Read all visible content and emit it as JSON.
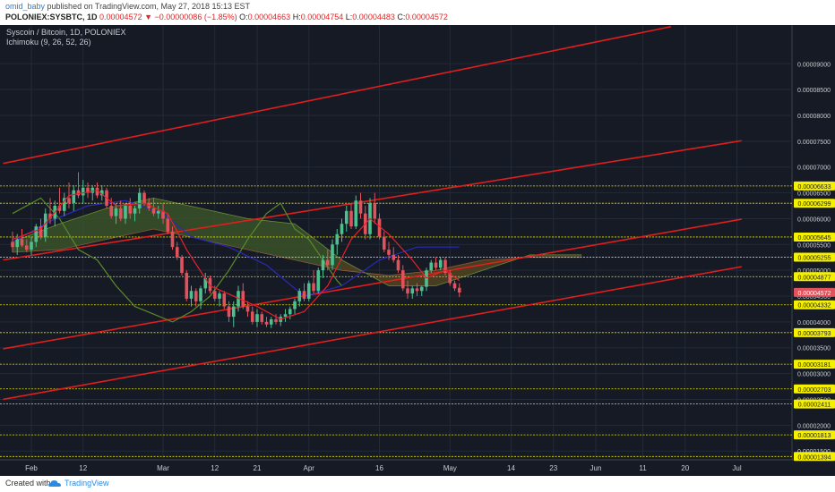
{
  "header": {
    "username": "omid_baby",
    "published_text": "published on TradingView.com, May 27, 2018 15:13 EST",
    "symbol": "POLONIEX:SYSBTC, 1D",
    "last": "0.00004572",
    "change": "▼ −0.00000086 (−1.85%)",
    "o_label": "O:",
    "o_value": "0.00004663",
    "h_label": "H:",
    "h_value": "0.00004754",
    "l_label": "L:",
    "l_value": "0.00004483",
    "c_label": "C:",
    "c_value": "0.00004572"
  },
  "overlay": {
    "title": "Syscoin / Bitcoin, 1D, POLONIEX",
    "indicator": "Ichimoku (9, 26, 52, 26)"
  },
  "footer": {
    "created_with": "Created with",
    "brand": "TradingView"
  },
  "colors": {
    "background": "#151a24",
    "grid": "#232a38",
    "up": "#4fbf8f",
    "down": "#e0535c",
    "trendline": "#e01e1e",
    "level": "#e8e400",
    "tenkan": "#e8202a",
    "kijun": "#2a2ab8",
    "chikou": "#5a8a2a",
    "cloud_bull": "#3e5a28",
    "cloud_bear": "#5a4a20",
    "axis_text": "#c7cbd1"
  },
  "chart_data": {
    "type": "candlestick",
    "symbol": "SYSBTC",
    "interval": "1D",
    "ylim": [
      1.33e-05,
      9.75e-05
    ],
    "y_ticks": [
      "0.00009000",
      "0.00008500",
      "0.00008000",
      "0.00007500",
      "0.00007000",
      "0.00006500",
      "0.00006000",
      "0.00005500",
      "0.00005000",
      "0.00004500",
      "0.00004000",
      "0.00003500",
      "0.00003000",
      "0.00002500",
      "0.00002000",
      "0.00001500"
    ],
    "x_ticks": [
      {
        "label": "Feb",
        "d": 4
      },
      {
        "label": "12",
        "d": 15
      },
      {
        "label": "Mar",
        "d": 32
      },
      {
        "label": "12",
        "d": 43
      },
      {
        "label": "21",
        "d": 52
      },
      {
        "label": "Apr",
        "d": 63
      },
      {
        "label": "16",
        "d": 78
      },
      {
        "label": "May",
        "d": 93
      },
      {
        "label": "14",
        "d": 106
      },
      {
        "label": "23",
        "d": 115
      },
      {
        "label": "Jun",
        "d": 124
      },
      {
        "label": "11",
        "d": 134
      },
      {
        "label": "20",
        "d": 143
      },
      {
        "label": "Jul",
        "d": 154
      }
    ],
    "levels": [
      {
        "label": "0.00006633",
        "value": 6.633e-05
      },
      {
        "label": "0.00006299",
        "value": 6.299e-05
      },
      {
        "label": "0.00005645",
        "value": 5.645e-05
      },
      {
        "label": "0.00005255",
        "value": 5.255e-05
      },
      {
        "label": "0.00004877",
        "value": 4.877e-05
      },
      {
        "label": "0.00004332",
        "value": 4.332e-05
      },
      {
        "label": "0.00003793",
        "value": 3.793e-05
      },
      {
        "label": "0.00003181",
        "value": 3.181e-05
      },
      {
        "label": "0.00002703",
        "value": 2.703e-05
      },
      {
        "label": "0.00002411",
        "value": 2.411e-05
      },
      {
        "label": "0.00001813",
        "value": 1.813e-05
      },
      {
        "label": "0.00001394",
        "value": 1.394e-05
      }
    ],
    "last_price": {
      "label": "0.00004572",
      "value": 4.572e-05
    },
    "trendlines": [
      [
        [
          -2,
          7.07e-05
        ],
        [
          140,
          9.72e-05
        ]
      ],
      [
        [
          -2,
          5.2e-05
        ],
        [
          155,
          7.51e-05
        ]
      ],
      [
        [
          -2,
          3.48e-05
        ],
        [
          155,
          5.99e-05
        ]
      ],
      [
        [
          -2,
          2.5e-05
        ],
        [
          155,
          5.07e-05
        ]
      ]
    ],
    "candles": [
      [
        5.55e-05,
        5.75e-05,
        5.35e-05,
        5.45e-05
      ],
      [
        5.45e-05,
        5.7e-05,
        5.3e-05,
        5.6e-05
      ],
      [
        5.6e-05,
        5.8e-05,
        5.45e-05,
        5.48e-05
      ],
      [
        5.48e-05,
        5.6e-05,
        5.35e-05,
        5.4e-05
      ],
      [
        5.4e-05,
        5.65e-05,
        5.3e-05,
        5.55e-05
      ],
      [
        5.55e-05,
        5.9e-05,
        5.45e-05,
        5.85e-05
      ],
      [
        5.85e-05,
        6e-05,
        5.6e-05,
        5.65e-05
      ],
      [
        5.65e-05,
        6.2e-05,
        5.55e-05,
        6.1e-05
      ],
      [
        6.1e-05,
        6.4e-05,
        5.9e-05,
        6e-05
      ],
      [
        6e-05,
        6.35e-05,
        5.85e-05,
        6.25e-05
      ],
      [
        6.25e-05,
        6.6e-05,
        6.1e-05,
        6.15e-05
      ],
      [
        6.15e-05,
        6.5e-05,
        6.05e-05,
        6.4e-05
      ],
      [
        6.4e-05,
        6.7e-05,
        6.2e-05,
        6.3e-05
      ],
      [
        6.3e-05,
        6.65e-05,
        6.15e-05,
        6.55e-05
      ],
      [
        6.55e-05,
        6.9e-05,
        6.4e-05,
        6.45e-05
      ],
      [
        6.45e-05,
        6.75e-05,
        6.3e-05,
        6.6e-05
      ],
      [
        6.6e-05,
        6.7e-05,
        6.4e-05,
        6.5e-05
      ],
      [
        6.5e-05,
        6.65e-05,
        6.35e-05,
        6.6e-05
      ],
      [
        6.6e-05,
        6.7e-05,
        6.4e-05,
        6.45e-05
      ],
      [
        6.45e-05,
        6.65e-05,
        6.35e-05,
        6.55e-05
      ],
      [
        6.55e-05,
        6.6e-05,
        6.2e-05,
        6.25e-05
      ],
      [
        6.25e-05,
        6.4e-05,
        6e-05,
        6.05e-05
      ],
      [
        6.05e-05,
        6.3e-05,
        5.9e-05,
        6.2e-05
      ],
      [
        6.2e-05,
        6.35e-05,
        5.95e-05,
        6e-05
      ],
      [
        6e-05,
        6.3e-05,
        5.9e-05,
        6.25e-05
      ],
      [
        6.25e-05,
        6.4e-05,
        6e-05,
        6.1e-05
      ],
      [
        6.1e-05,
        6.25e-05,
        5.95e-05,
        6.2e-05
      ],
      [
        6.2e-05,
        6.6e-05,
        6.1e-05,
        6.5e-05
      ],
      [
        6.5e-05,
        6.55e-05,
        6.25e-05,
        6.3e-05
      ],
      [
        6.3e-05,
        6.4e-05,
        6.15e-05,
        6.2e-05
      ],
      [
        6.2e-05,
        6.4e-05,
        6.05e-05,
        6.1e-05
      ],
      [
        6.1e-05,
        6.25e-05,
        6e-05,
        6.15e-05
      ],
      [
        6.15e-05,
        6.3e-05,
        5.9e-05,
        6e-05
      ],
      [
        6e-05,
        6.1e-05,
        5.7e-05,
        5.75e-05
      ],
      [
        5.75e-05,
        5.85e-05,
        5.4e-05,
        5.45e-05
      ],
      [
        5.45e-05,
        5.55e-05,
        5.2e-05,
        5.25e-05
      ],
      [
        5.25e-05,
        5.3e-05,
        4.9e-05,
        4.95e-05
      ],
      [
        4.95e-05,
        5e-05,
        4.4e-05,
        4.45e-05
      ],
      [
        4.45e-05,
        4.7e-05,
        4.3e-05,
        4.6e-05
      ],
      [
        4.6e-05,
        4.65e-05,
        4.3e-05,
        4.4e-05
      ],
      [
        4.4e-05,
        4.7e-05,
        4.25e-05,
        4.65e-05
      ],
      [
        4.65e-05,
        4.95e-05,
        4.55e-05,
        4.85e-05
      ],
      [
        4.85e-05,
        4.9e-05,
        4.55e-05,
        4.6e-05
      ],
      [
        4.6e-05,
        4.7e-05,
        4.4e-05,
        4.45e-05
      ],
      [
        4.45e-05,
        4.6e-05,
        4.3e-05,
        4.55e-05
      ],
      [
        4.55e-05,
        4.6e-05,
        4.25e-05,
        4.3e-05
      ],
      [
        4.3e-05,
        4.4e-05,
        4e-05,
        4.1e-05
      ],
      [
        4.1e-05,
        4.4e-05,
        3.9e-05,
        4.3e-05
      ],
      [
        4.3e-05,
        4.7e-05,
        4.2e-05,
        4.6e-05
      ],
      [
        4.6e-05,
        4.75e-05,
        4.25e-05,
        4.3e-05
      ],
      [
        4.3e-05,
        4.4e-05,
        4.1e-05,
        4.2e-05
      ],
      [
        4.2e-05,
        4.3e-05,
        3.95e-05,
        4e-05
      ],
      [
        4e-05,
        4.25e-05,
        3.9e-05,
        4.15e-05
      ],
      [
        4.15e-05,
        4.2e-05,
        3.95e-05,
        4e-05
      ],
      [
        4e-05,
        4.1e-05,
        3.9e-05,
        3.95e-05
      ],
      [
        3.95e-05,
        4.1e-05,
        3.88e-05,
        4.05e-05
      ],
      [
        4.05e-05,
        4.15e-05,
        3.95e-05,
        4e-05
      ],
      [
        4e-05,
        4.15e-05,
        3.92e-05,
        4.1e-05
      ],
      [
        4.1e-05,
        4.25e-05,
        4e-05,
        4.15e-05
      ],
      [
        4.15e-05,
        4.3e-05,
        4.05e-05,
        4.25e-05
      ],
      [
        4.25e-05,
        4.45e-05,
        4.15e-05,
        4.4e-05
      ],
      [
        4.4e-05,
        4.65e-05,
        4.3e-05,
        4.6e-05
      ],
      [
        4.6e-05,
        4.75e-05,
        4.4e-05,
        4.45e-05
      ],
      [
        4.45e-05,
        4.8e-05,
        4.4e-05,
        4.75e-05
      ],
      [
        4.75e-05,
        5e-05,
        4.55e-05,
        4.6e-05
      ],
      [
        4.6e-05,
        5.05e-05,
        4.55e-05,
        5e-05
      ],
      [
        5e-05,
        5.3e-05,
        4.85e-05,
        5.2e-05
      ],
      [
        5.2e-05,
        5.4e-05,
        5e-05,
        5.1e-05
      ],
      [
        5.1e-05,
        5.6e-05,
        5e-05,
        5.5e-05
      ],
      [
        5.5e-05,
        5.8e-05,
        5.3e-05,
        5.7e-05
      ],
      [
        5.7e-05,
        6e-05,
        5.55e-05,
        5.9e-05
      ],
      [
        5.9e-05,
        6.25e-05,
        5.75e-05,
        6.15e-05
      ],
      [
        6.15e-05,
        6.3e-05,
        5.8e-05,
        5.85e-05
      ],
      [
        5.85e-05,
        6.45e-05,
        5.8e-05,
        6.35e-05
      ],
      [
        6.35e-05,
        6.5e-05,
        6e-05,
        6.1e-05
      ],
      [
        6.1e-05,
        6.25e-05,
        5.6e-05,
        5.7e-05
      ],
      [
        5.7e-05,
        6.4e-05,
        5.6e-05,
        6.3e-05
      ],
      [
        6.3e-05,
        6.5e-05,
        5.9e-05,
        6e-05
      ],
      [
        6e-05,
        6.1e-05,
        5.6e-05,
        5.65e-05
      ],
      [
        5.65e-05,
        5.75e-05,
        5.35e-05,
        5.4e-05
      ],
      [
        5.4e-05,
        5.55e-05,
        5.2e-05,
        5.3e-05
      ],
      [
        5.3e-05,
        5.45e-05,
        5.15e-05,
        5.2e-05
      ],
      [
        5.2e-05,
        5.3e-05,
        4.95e-05,
        5e-05
      ],
      [
        5e-05,
        5.1e-05,
        4.6e-05,
        4.65e-05
      ],
      [
        4.65e-05,
        4.8e-05,
        4.45e-05,
        4.55e-05
      ],
      [
        4.55e-05,
        4.7e-05,
        4.45e-05,
        4.65e-05
      ],
      [
        4.65e-05,
        4.75e-05,
        4.5e-05,
        4.6e-05
      ],
      [
        4.6e-05,
        4.7e-05,
        4.5e-05,
        4.68e-05
      ],
      [
        4.68e-05,
        5.05e-05,
        4.6e-05,
        5e-05
      ],
      [
        5e-05,
        5.2e-05,
        4.95e-05,
        5.15e-05
      ],
      [
        5.15e-05,
        5.25e-05,
        5e-05,
        5.05e-05
      ],
      [
        5.05e-05,
        5.25e-05,
        5e-05,
        5.2e-05
      ],
      [
        5.2e-05,
        5.25e-05,
        4.9e-05,
        4.95e-05
      ],
      [
        4.95e-05,
        5e-05,
        4.7e-05,
        4.75e-05
      ],
      [
        4.75e-05,
        4.8e-05,
        4.6e-05,
        4.65e-05
      ],
      [
        4.66e-05,
        4.75e-05,
        4.48e-05,
        4.57e-05
      ]
    ],
    "tenkan": [
      [
        0,
        5.6e-05
      ],
      [
        6,
        5.8e-05
      ],
      [
        12,
        6.45e-05
      ],
      [
        18,
        6.55e-05
      ],
      [
        22,
        6.25e-05
      ],
      [
        28,
        6.3e-05
      ],
      [
        33,
        6.1e-05
      ],
      [
        37,
        5.4e-05
      ],
      [
        42,
        4.7e-05
      ],
      [
        47,
        4.5e-05
      ],
      [
        52,
        4.3e-05
      ],
      [
        57,
        4.05e-05
      ],
      [
        62,
        4.2e-05
      ],
      [
        67,
        4.7e-05
      ],
      [
        72,
        5.6e-05
      ],
      [
        76,
        6e-05
      ],
      [
        80,
        5.7e-05
      ],
      [
        85,
        5.2e-05
      ],
      [
        88,
        4.85e-05
      ],
      [
        92,
        5e-05
      ],
      [
        95,
        4.8e-05
      ]
    ],
    "kijun": [
      [
        0,
        5.55e-05
      ],
      [
        8,
        5.95e-05
      ],
      [
        16,
        6.25e-05
      ],
      [
        24,
        6.35e-05
      ],
      [
        32,
        6.1e-05
      ],
      [
        38,
        5.65e-05
      ],
      [
        46,
        5.45e-05
      ],
      [
        54,
        5.1e-05
      ],
      [
        62,
        4.5e-05
      ],
      [
        70,
        4.7e-05
      ],
      [
        78,
        5.2e-05
      ],
      [
        86,
        5.45e-05
      ],
      [
        95,
        5.45e-05
      ]
    ],
    "chikou": [
      [
        0,
        6.1e-05
      ],
      [
        6,
        6.4e-05
      ],
      [
        10,
        6e-05
      ],
      [
        14,
        5.4e-05
      ],
      [
        18,
        5.2e-05
      ],
      [
        22,
        4.7e-05
      ],
      [
        26,
        4.3e-05
      ],
      [
        30,
        4.15e-05
      ],
      [
        34,
        4e-05
      ],
      [
        38,
        4.2e-05
      ],
      [
        42,
        4.5e-05
      ],
      [
        46,
        5e-05
      ],
      [
        50,
        5.6e-05
      ],
      [
        54,
        6.1e-05
      ],
      [
        57,
        6.3e-05
      ],
      [
        60,
        5.8e-05
      ],
      [
        63,
        5.6e-05
      ],
      [
        66,
        5.2e-05
      ],
      [
        69,
        4.8e-05
      ],
      [
        70,
        4.7e-05
      ]
    ],
    "cloud_a": [
      [
        0,
        5.55e-05
      ],
      [
        10,
        5.9e-05
      ],
      [
        20,
        6.2e-05
      ],
      [
        30,
        6.4e-05
      ],
      [
        40,
        6.2e-05
      ],
      [
        50,
        6e-05
      ],
      [
        60,
        5.9e-05
      ],
      [
        70,
        5.2e-05
      ],
      [
        80,
        4.7e-05
      ],
      [
        90,
        4.7e-05
      ],
      [
        100,
        5e-05
      ],
      [
        110,
        5.3e-05
      ],
      [
        121,
        5.3e-05
      ]
    ],
    "cloud_b": [
      [
        0,
        5.35e-05
      ],
      [
        10,
        5.4e-05
      ],
      [
        20,
        5.6e-05
      ],
      [
        30,
        5.8e-05
      ],
      [
        40,
        5.6e-05
      ],
      [
        50,
        5.4e-05
      ],
      [
        60,
        5.2e-05
      ],
      [
        70,
        5e-05
      ],
      [
        80,
        4.9e-05
      ],
      [
        90,
        5e-05
      ],
      [
        100,
        5.2e-05
      ],
      [
        110,
        5.25e-05
      ],
      [
        121,
        5.25e-05
      ]
    ]
  }
}
